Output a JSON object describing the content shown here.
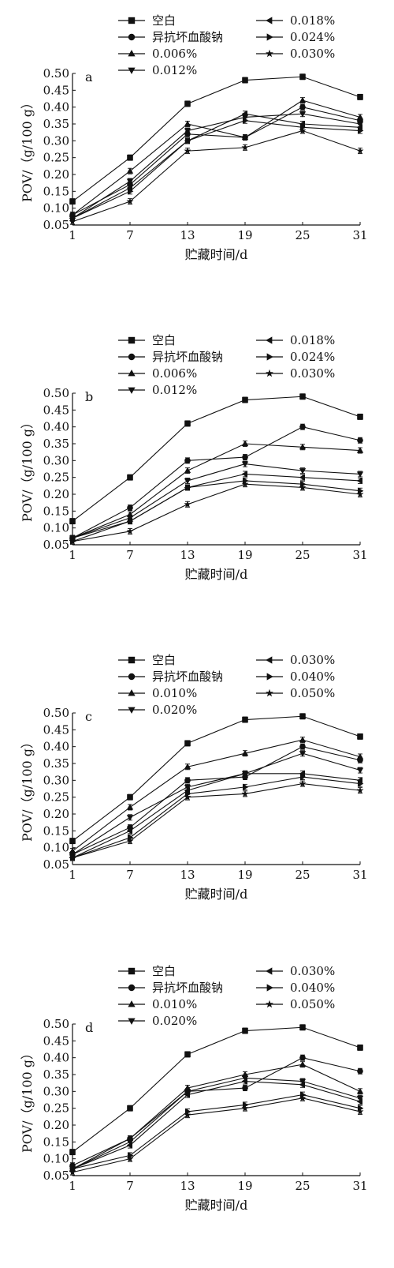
{
  "chart_data": [
    {
      "type": "line",
      "panel_label": "a",
      "ylabel": "POV/（g/100 g）",
      "xlabel": "贮藏时间/d",
      "x": [
        1,
        7,
        13,
        19,
        25,
        31
      ],
      "x_ticks": [
        "1",
        "7",
        "13",
        "19",
        "25",
        "31"
      ],
      "ylim": [
        0.05,
        0.5
      ],
      "y_ticks": [
        "0.05",
        "0.10",
        "0.15",
        "0.20",
        "0.25",
        "0.30",
        "0.35",
        "0.40",
        "0.45",
        "0.50"
      ],
      "series": [
        {
          "name": "空白",
          "marker": "square",
          "values": [
            0.12,
            0.25,
            0.41,
            0.48,
            0.49,
            0.43
          ]
        },
        {
          "name": "异抗坏血酸钠",
          "marker": "circle",
          "values": [
            0.08,
            0.17,
            0.32,
            0.31,
            0.4,
            0.36
          ]
        },
        {
          "name": "0.006%",
          "marker": "triangle-up",
          "values": [
            0.08,
            0.21,
            0.35,
            0.31,
            0.42,
            0.37
          ]
        },
        {
          "name": "0.012%",
          "marker": "triangle-down",
          "values": [
            0.07,
            0.18,
            0.33,
            0.37,
            0.38,
            0.35
          ]
        },
        {
          "name": "0.018%",
          "marker": "triangle-left",
          "values": [
            0.07,
            0.16,
            0.3,
            0.38,
            0.35,
            0.34
          ]
        },
        {
          "name": "0.024%",
          "marker": "triangle-right",
          "values": [
            0.07,
            0.15,
            0.3,
            0.36,
            0.34,
            0.33
          ]
        },
        {
          "name": "0.030%",
          "marker": "star",
          "values": [
            0.06,
            0.12,
            0.27,
            0.28,
            0.33,
            0.27
          ]
        }
      ]
    },
    {
      "type": "line",
      "panel_label": "b",
      "ylabel": "POV/（g/100 g）",
      "xlabel": "贮藏时间/d",
      "x": [
        1,
        7,
        13,
        19,
        25,
        31
      ],
      "x_ticks": [
        "1",
        "7",
        "13",
        "19",
        "25",
        "31"
      ],
      "ylim": [
        0.05,
        0.5
      ],
      "y_ticks": [
        "0.05",
        "0.10",
        "0.15",
        "0.20",
        "0.25",
        "0.30",
        "0.35",
        "0.40",
        "0.45",
        "0.50"
      ],
      "series": [
        {
          "name": "空白",
          "marker": "square",
          "values": [
            0.12,
            0.25,
            0.41,
            0.48,
            0.49,
            0.43
          ]
        },
        {
          "name": "异抗坏血酸钠",
          "marker": "circle",
          "values": [
            0.07,
            0.16,
            0.3,
            0.31,
            0.4,
            0.36
          ]
        },
        {
          "name": "0.006%",
          "marker": "triangle-up",
          "values": [
            0.07,
            0.14,
            0.27,
            0.35,
            0.34,
            0.33
          ]
        },
        {
          "name": "0.012%",
          "marker": "triangle-down",
          "values": [
            0.07,
            0.13,
            0.24,
            0.29,
            0.27,
            0.26
          ]
        },
        {
          "name": "0.018%",
          "marker": "triangle-left",
          "values": [
            0.07,
            0.12,
            0.22,
            0.26,
            0.25,
            0.24
          ]
        },
        {
          "name": "0.024%",
          "marker": "triangle-right",
          "values": [
            0.06,
            0.12,
            0.22,
            0.24,
            0.23,
            0.21
          ]
        },
        {
          "name": "0.030%",
          "marker": "star",
          "values": [
            0.06,
            0.09,
            0.17,
            0.23,
            0.22,
            0.2
          ]
        }
      ]
    },
    {
      "type": "line",
      "panel_label": "c",
      "ylabel": "POV/（g/100 g）",
      "xlabel": "贮藏时间/d",
      "x": [
        1,
        7,
        13,
        19,
        25,
        31
      ],
      "x_ticks": [
        "1",
        "7",
        "13",
        "19",
        "25",
        "31"
      ],
      "ylim": [
        0.05,
        0.5
      ],
      "y_ticks": [
        "0.05",
        "0.10",
        "0.15",
        "0.20",
        "0.25",
        "0.30",
        "0.35",
        "0.40",
        "0.45",
        "0.50"
      ],
      "series": [
        {
          "name": "空白",
          "marker": "square",
          "values": [
            0.12,
            0.25,
            0.41,
            0.48,
            0.49,
            0.43
          ]
        },
        {
          "name": "异抗坏血酸钠",
          "marker": "circle",
          "values": [
            0.08,
            0.16,
            0.3,
            0.31,
            0.4,
            0.36
          ]
        },
        {
          "name": "0.010%",
          "marker": "triangle-up",
          "values": [
            0.09,
            0.22,
            0.34,
            0.38,
            0.42,
            0.37
          ]
        },
        {
          "name": "0.020%",
          "marker": "triangle-down",
          "values": [
            0.08,
            0.19,
            0.28,
            0.32,
            0.38,
            0.33
          ]
        },
        {
          "name": "0.030%",
          "marker": "triangle-left",
          "values": [
            0.07,
            0.15,
            0.27,
            0.32,
            0.32,
            0.3
          ]
        },
        {
          "name": "0.040%",
          "marker": "triangle-right",
          "values": [
            0.07,
            0.13,
            0.26,
            0.28,
            0.31,
            0.29
          ]
        },
        {
          "name": "0.050%",
          "marker": "star",
          "values": [
            0.07,
            0.12,
            0.25,
            0.26,
            0.29,
            0.27
          ]
        }
      ]
    },
    {
      "type": "line",
      "panel_label": "d",
      "ylabel": "POV/（g/100 g）",
      "xlabel": "贮藏时间/d",
      "x": [
        1,
        7,
        13,
        19,
        25,
        31
      ],
      "x_ticks": [
        "1",
        "7",
        "13",
        "19",
        "25",
        "31"
      ],
      "ylim": [
        0.05,
        0.5
      ],
      "y_ticks": [
        "0.05",
        "0.10",
        "0.15",
        "0.20",
        "0.25",
        "0.30",
        "0.35",
        "0.40",
        "0.45",
        "0.50"
      ],
      "series": [
        {
          "name": "空白",
          "marker": "square",
          "values": [
            0.12,
            0.25,
            0.41,
            0.48,
            0.49,
            0.43
          ]
        },
        {
          "name": "异抗坏血酸钠",
          "marker": "circle",
          "values": [
            0.08,
            0.16,
            0.3,
            0.31,
            0.4,
            0.36
          ]
        },
        {
          "name": "0.010%",
          "marker": "triangle-up",
          "values": [
            0.07,
            0.16,
            0.31,
            0.35,
            0.38,
            0.3
          ]
        },
        {
          "name": "0.020%",
          "marker": "triangle-down",
          "values": [
            0.07,
            0.15,
            0.3,
            0.34,
            0.33,
            0.28
          ]
        },
        {
          "name": "0.030%",
          "marker": "triangle-left",
          "values": [
            0.07,
            0.14,
            0.29,
            0.33,
            0.32,
            0.27
          ]
        },
        {
          "name": "0.040%",
          "marker": "triangle-right",
          "values": [
            0.07,
            0.11,
            0.24,
            0.26,
            0.29,
            0.25
          ]
        },
        {
          "name": "0.050%",
          "marker": "star",
          "values": [
            0.06,
            0.1,
            0.23,
            0.25,
            0.28,
            0.24
          ]
        }
      ]
    }
  ]
}
